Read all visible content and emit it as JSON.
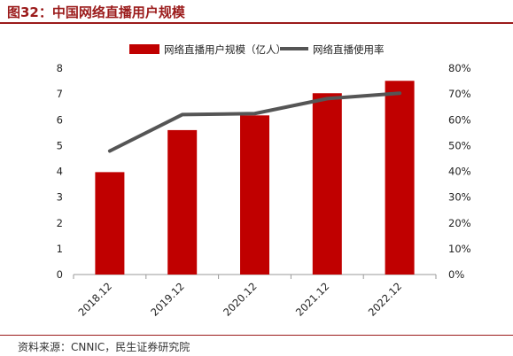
{
  "page": {
    "title": "图32：中国网络直播用户规模",
    "source": "资料来源：CNNIC，民生证券研究院"
  },
  "colors": {
    "bar": "#c00000",
    "line": "#555555",
    "accent": "#9b1b1b"
  },
  "chart_data": {
    "type": "bar",
    "categories": [
      "2018.12",
      "2019.12",
      "2020.12",
      "2021.12",
      "2022.12"
    ],
    "series": [
      {
        "name": "网络直播用户规模（亿人）",
        "type": "bar",
        "axis": "left",
        "values": [
          3.97,
          5.6,
          6.17,
          7.03,
          7.51
        ]
      },
      {
        "name": "网络直播使用率",
        "type": "line",
        "axis": "right",
        "values": [
          47.9,
          62.0,
          62.4,
          68.2,
          70.3
        ]
      }
    ],
    "y_left": {
      "ylim": [
        0,
        8
      ],
      "ticks": [
        "0",
        "1",
        "2",
        "3",
        "4",
        "5",
        "6",
        "7",
        "8"
      ]
    },
    "y_right": {
      "ylim": [
        0,
        80
      ],
      "ticks": [
        "0%",
        "10%",
        "20%",
        "30%",
        "40%",
        "50%",
        "60%",
        "70%",
        "80%"
      ]
    },
    "grid": false,
    "legend_position": "top"
  }
}
